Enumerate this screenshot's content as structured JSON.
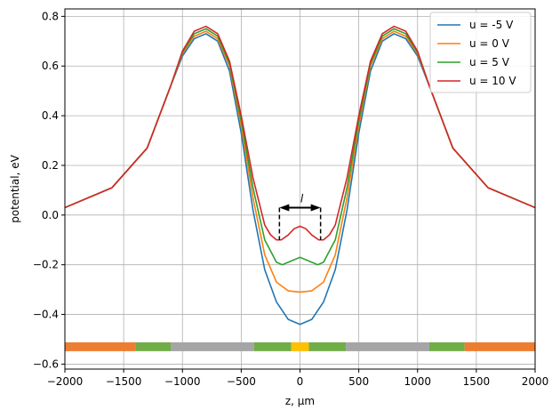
{
  "chart_data": {
    "type": "line",
    "xlabel": "z, μm",
    "ylabel": "potential, eV",
    "xlim": [
      -2000,
      2000
    ],
    "ylim": [
      -0.62,
      0.83
    ],
    "x_ticks": [
      -2000,
      -1500,
      -1000,
      -500,
      0,
      500,
      1000,
      1500,
      2000
    ],
    "y_ticks": [
      -0.6,
      -0.4,
      -0.2,
      0.0,
      0.2,
      0.4,
      0.6,
      0.8
    ],
    "x_tick_labels": [
      "−2000",
      "−1500",
      "−1000",
      "−500",
      "0",
      "500",
      "1000",
      "1500",
      "2000"
    ],
    "y_tick_labels": [
      "−0.6",
      "−0.4",
      "−0.2",
      "0.0",
      "0.2",
      "0.4",
      "0.6",
      "0.8"
    ],
    "grid": true,
    "legend_position": "top-right",
    "series": [
      {
        "name": "u = -5 V",
        "color": "#1f77b4",
        "x": [
          -2000,
          -1600,
          -1300,
          -1100,
          -1000,
          -900,
          -800,
          -700,
          -600,
          -500,
          -400,
          -300,
          -200,
          -100,
          0,
          100,
          200,
          300,
          400,
          500,
          600,
          700,
          800,
          900,
          1000,
          1100,
          1300,
          1600,
          2000
        ],
        "y": [
          0.03,
          0.11,
          0.27,
          0.52,
          0.64,
          0.71,
          0.73,
          0.7,
          0.58,
          0.33,
          0.02,
          -0.22,
          -0.35,
          -0.42,
          -0.44,
          -0.42,
          -0.35,
          -0.22,
          0.02,
          0.33,
          0.58,
          0.7,
          0.73,
          0.71,
          0.64,
          0.52,
          0.27,
          0.11,
          0.03
        ]
      },
      {
        "name": "u = 0 V",
        "color": "#ff7f0e",
        "x": [
          -2000,
          -1600,
          -1300,
          -1100,
          -1000,
          -900,
          -800,
          -700,
          -600,
          -500,
          -400,
          -300,
          -200,
          -100,
          0,
          100,
          200,
          300,
          400,
          500,
          600,
          700,
          800,
          900,
          1000,
          1100,
          1300,
          1600,
          2000
        ],
        "y": [
          0.03,
          0.11,
          0.27,
          0.52,
          0.65,
          0.72,
          0.74,
          0.71,
          0.6,
          0.36,
          0.07,
          -0.16,
          -0.27,
          -0.305,
          -0.31,
          -0.305,
          -0.27,
          -0.16,
          0.07,
          0.36,
          0.6,
          0.71,
          0.74,
          0.72,
          0.65,
          0.52,
          0.27,
          0.11,
          0.03
        ]
      },
      {
        "name": "u = 5 V",
        "color": "#2ca02c",
        "x": [
          -2000,
          -1600,
          -1300,
          -1100,
          -1000,
          -900,
          -800,
          -700,
          -600,
          -500,
          -400,
          -300,
          -200,
          -150,
          -100,
          0,
          100,
          150,
          200,
          300,
          400,
          500,
          600,
          700,
          800,
          900,
          1000,
          1100,
          1300,
          1600,
          2000
        ],
        "y": [
          0.03,
          0.11,
          0.27,
          0.52,
          0.655,
          0.73,
          0.75,
          0.72,
          0.61,
          0.38,
          0.11,
          -0.1,
          -0.19,
          -0.2,
          -0.19,
          -0.17,
          -0.19,
          -0.2,
          -0.19,
          -0.1,
          0.11,
          0.38,
          0.61,
          0.72,
          0.75,
          0.73,
          0.655,
          0.52,
          0.27,
          0.11,
          0.03
        ]
      },
      {
        "name": "u = 10 V",
        "color": "#d62728",
        "x": [
          -2000,
          -1600,
          -1300,
          -1100,
          -1000,
          -900,
          -800,
          -700,
          -600,
          -500,
          -400,
          -300,
          -250,
          -200,
          -160,
          -100,
          -50,
          0,
          50,
          100,
          160,
          200,
          250,
          300,
          400,
          500,
          600,
          700,
          800,
          900,
          1000,
          1100,
          1300,
          1600,
          2000
        ],
        "y": [
          0.03,
          0.11,
          0.27,
          0.52,
          0.66,
          0.74,
          0.76,
          0.73,
          0.62,
          0.4,
          0.15,
          -0.04,
          -0.08,
          -0.1,
          -0.1,
          -0.08,
          -0.055,
          -0.045,
          -0.055,
          -0.08,
          -0.1,
          -0.1,
          -0.08,
          -0.04,
          0.15,
          0.4,
          0.62,
          0.73,
          0.76,
          0.74,
          0.66,
          0.52,
          0.27,
          0.11,
          0.03
        ]
      }
    ],
    "annotations": {
      "l_marker": {
        "text": "l",
        "x_left": -175,
        "x_right": 175,
        "y_top": 0.03,
        "y_bottom": -0.1
      },
      "electrode_bar": {
        "y": -0.53,
        "segments": [
          {
            "from": -2000,
            "to": -1400,
            "color": "#ed7d31"
          },
          {
            "from": -1400,
            "to": -1100,
            "color": "#70ad47"
          },
          {
            "from": -1100,
            "to": -390,
            "color": "#a5a5a5"
          },
          {
            "from": -390,
            "to": -75,
            "color": "#70ad47"
          },
          {
            "from": -75,
            "to": 75,
            "color": "#ffc000"
          },
          {
            "from": 75,
            "to": 390,
            "color": "#70ad47"
          },
          {
            "from": 390,
            "to": 1100,
            "color": "#a5a5a5"
          },
          {
            "from": 1100,
            "to": 1400,
            "color": "#70ad47"
          },
          {
            "from": 1400,
            "to": 2000,
            "color": "#ed7d31"
          }
        ]
      }
    }
  }
}
